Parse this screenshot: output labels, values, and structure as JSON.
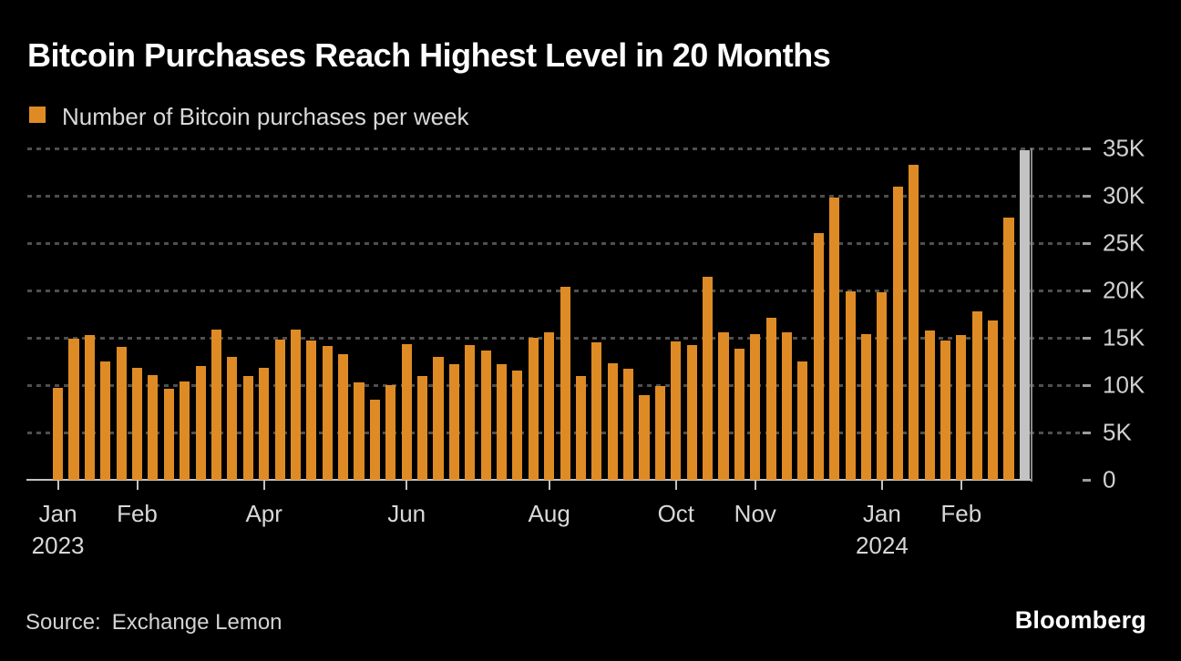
{
  "header": {
    "title": "Bitcoin Purchases Reach Highest Level in 20 Months"
  },
  "footer": {
    "source_label": "Source:",
    "source_value": "Exchange Lemon",
    "brand": "Bloomberg"
  },
  "colors": {
    "background": "#000000",
    "bar": "#DE8B26",
    "highlight_bar": "#C3C3C3",
    "grid_dots": "#4F4F4F",
    "grid_end_dash": "#9C9C9C",
    "right_axis_line": "#8C8C8C",
    "baseline": "#C2C2C2",
    "title_text": "#FFFFFF",
    "label_text": "#D8D8D8"
  },
  "chart_data": {
    "type": "bar",
    "title": "Bitcoin Purchases Reach Highest Level in 20 Months",
    "legend": [
      {
        "label": "Number of Bitcoin purchases per week",
        "color": "#DE8B26"
      }
    ],
    "unit": "Bitcoin purchases per week",
    "x_description": "weeks from Jan 2023 to Mar 2024",
    "ylim": [
      0,
      35000
    ],
    "yticks": [
      0,
      5000,
      10000,
      15000,
      20000,
      25000,
      30000,
      35000
    ],
    "ytick_labels": [
      "0",
      "5K",
      "10K",
      "15K",
      "20K",
      "25K",
      "30K",
      "35K"
    ],
    "grid": "dotted horizontal gridlines, labels on right side",
    "legend_position": "top-left",
    "values": [
      9700,
      14900,
      15300,
      12500,
      14000,
      11800,
      11100,
      9600,
      10400,
      12000,
      15900,
      13000,
      11000,
      11800,
      14800,
      15900,
      14700,
      14100,
      13300,
      10300,
      8500,
      10000,
      14300,
      11000,
      13000,
      12200,
      14200,
      13700,
      12200,
      11500,
      15000,
      15600,
      20400,
      11000,
      14500,
      12300,
      11700,
      8900,
      9900,
      14600,
      14200,
      21400,
      15600,
      13800,
      15400,
      17100,
      15600,
      12500,
      26100,
      29800,
      19900,
      15400,
      19800,
      31000,
      33300,
      15800,
      14700,
      15300,
      17800,
      16800,
      27700,
      34800
    ],
    "highlight": {
      "index": 61,
      "color": "#C3C3C3",
      "description": "last bar (most recent week) drawn in gray"
    },
    "x_ticks": [
      {
        "label": "Jan",
        "year": "2023",
        "week": 1
      },
      {
        "label": "Feb",
        "week": 6
      },
      {
        "label": "Apr",
        "week": 14
      },
      {
        "label": "Jun",
        "week": 23
      },
      {
        "label": "Aug",
        "week": 32
      },
      {
        "label": "Oct",
        "week": 40
      },
      {
        "label": "Nov",
        "week": 45
      },
      {
        "label": "Jan",
        "year": "2024",
        "week": 53
      },
      {
        "label": "Feb",
        "week": 58
      }
    ]
  }
}
